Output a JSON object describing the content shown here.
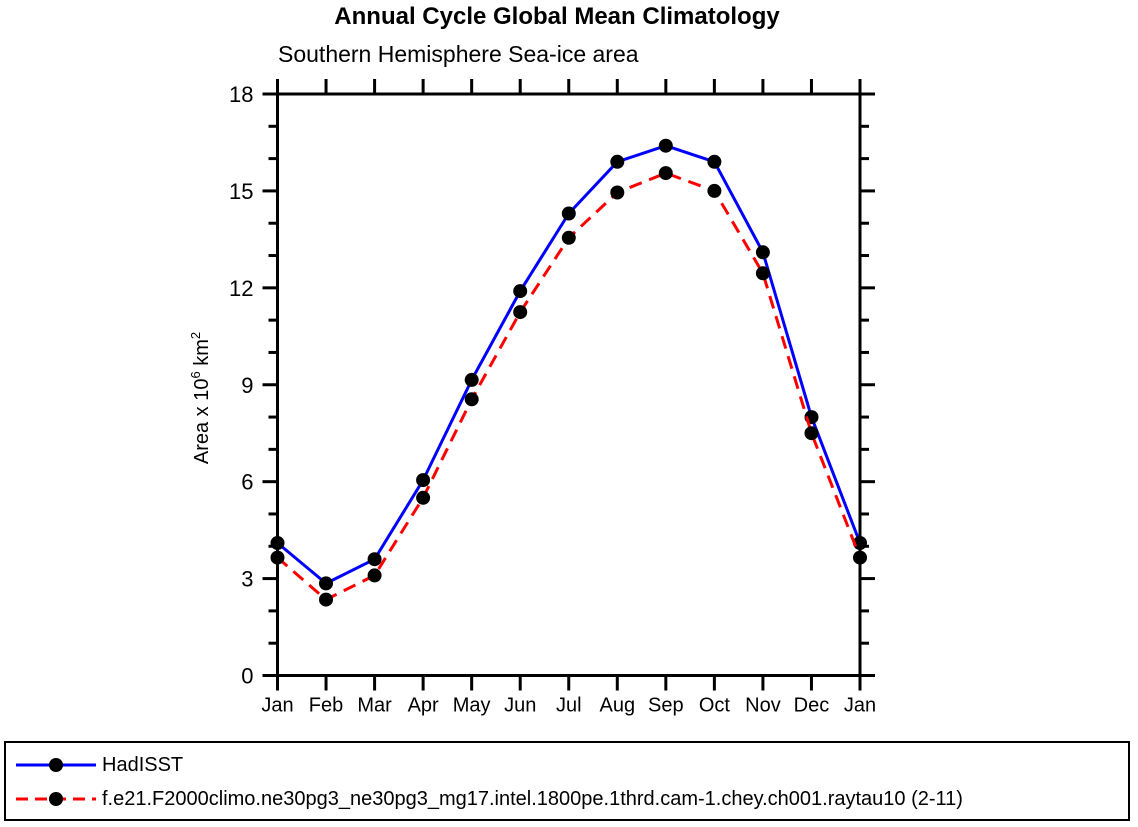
{
  "title": "Annual Cycle Global Mean Climatology",
  "subtitle": "Southern Hemisphere Sea-ice area",
  "chart_data": {
    "type": "line",
    "title": "Annual Cycle Global Mean Climatology",
    "subtitle": "Southern Hemisphere Sea-ice area",
    "xlabel": "",
    "ylabel": "Area x 10⁶ km²",
    "ylabel_parts": [
      "Area x 10",
      "6",
      " km",
      "2"
    ],
    "x_categories": [
      "Jan",
      "Feb",
      "Mar",
      "Apr",
      "May",
      "Jun",
      "Jul",
      "Aug",
      "Sep",
      "Oct",
      "Nov",
      "Dec",
      "Jan"
    ],
    "ylim": [
      0,
      18
    ],
    "y_major_ticks": [
      0,
      3,
      6,
      9,
      12,
      15,
      18
    ],
    "y_minor_step": 1,
    "grid": false,
    "legend_position": "bottom-left-outside-box",
    "axis_color": "#000000",
    "series": [
      {
        "name": "HadISST",
        "color": "#0000ff",
        "line_style": "solid",
        "marker": "filled-circle",
        "marker_color": "#000000",
        "values": [
          4.1,
          2.85,
          3.6,
          6.05,
          9.15,
          11.9,
          14.3,
          15.9,
          16.4,
          15.9,
          13.1,
          8.0,
          4.1
        ]
      },
      {
        "name": "f.e21.F2000climo.ne30pg3_ne30pg3_mg17.intel.1800pe.1thrd.cam-1.chey.ch001.raytau10 (2-11)",
        "color": "#ff0000",
        "line_style": "dashed",
        "marker": "filled-circle",
        "marker_color": "#000000",
        "values": [
          3.65,
          2.35,
          3.1,
          5.5,
          8.55,
          11.25,
          13.55,
          14.95,
          15.55,
          15.0,
          12.45,
          7.5,
          3.65
        ]
      }
    ]
  }
}
